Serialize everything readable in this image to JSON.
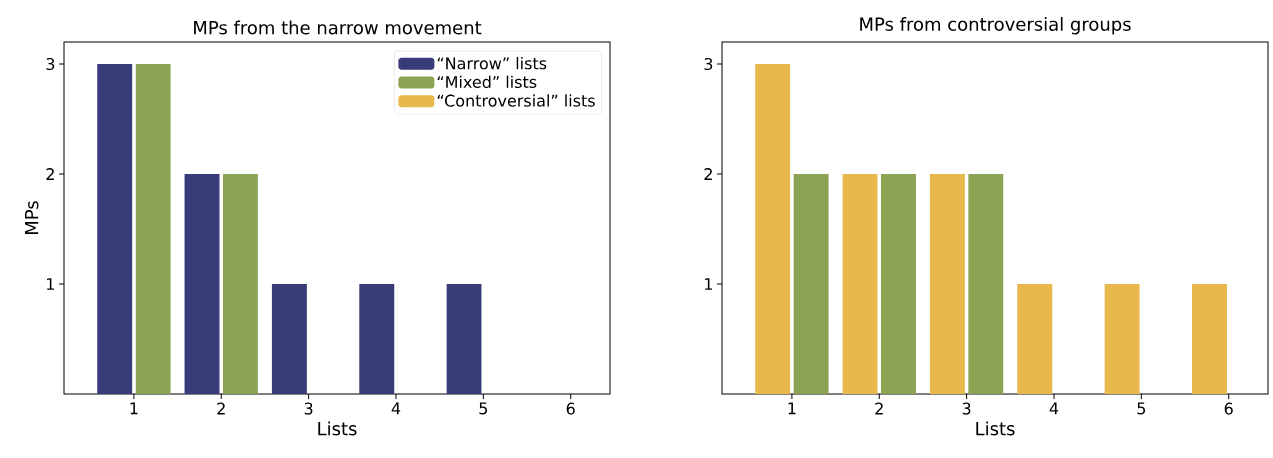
{
  "chart_data": [
    {
      "type": "bar",
      "title": "MPs from the narrow movement",
      "xlabel": "Lists",
      "ylabel": "MPs",
      "x": [
        1,
        2,
        3,
        4,
        5
      ],
      "xlim": [
        0.2,
        6.45
      ],
      "xticks": [
        1,
        2,
        3,
        4,
        5,
        6
      ],
      "ylim": [
        0,
        3.2
      ],
      "yticks": [
        1,
        2,
        3
      ],
      "legend": "top right",
      "series": [
        {
          "name": "“Narrow” lists",
          "color": "#383c78",
          "values": [
            3,
            2,
            1,
            1,
            1
          ]
        },
        {
          "name": "“Mixed” lists",
          "color": "#8ba352",
          "values": [
            3,
            2,
            null,
            null,
            null
          ]
        },
        {
          "name": "“Controversial” lists",
          "color": "#e8b84d",
          "values": [
            null,
            null,
            null,
            null,
            null
          ]
        }
      ]
    },
    {
      "type": "bar",
      "title": "MPs from controversial groups",
      "xlabel": "Lists",
      "x": [
        1,
        2,
        3,
        4,
        5,
        6
      ],
      "xlim": [
        0.2,
        6.45
      ],
      "xticks": [
        1,
        2,
        3,
        4,
        5,
        6
      ],
      "ylim": [
        0,
        3.2
      ],
      "yticks": [
        1,
        2,
        3
      ],
      "series": [
        {
          "color": "#e8b84d",
          "values": [
            3,
            2,
            2,
            1,
            1,
            1
          ]
        },
        {
          "color": "#8ba352",
          "values": [
            2,
            2,
            2,
            null,
            null,
            null
          ]
        }
      ]
    }
  ]
}
